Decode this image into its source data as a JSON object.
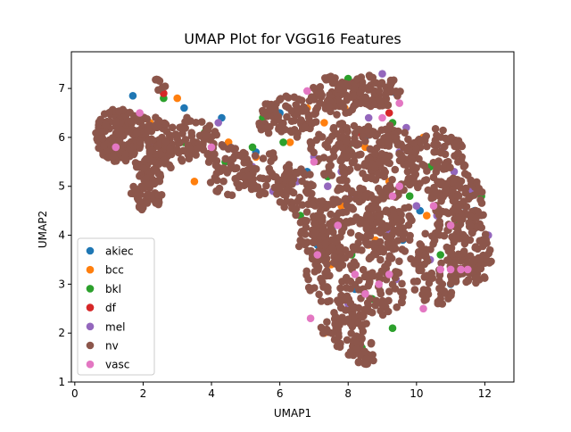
{
  "chart_data": {
    "type": "scatter",
    "title": "UMAP Plot for VGG16 Features",
    "xlabel": "UMAP1",
    "ylabel": "UMAP2",
    "xlim": [
      -0.1,
      12.85
    ],
    "ylim": [
      1.0,
      7.75
    ],
    "xticks": [
      0,
      2,
      4,
      6,
      8,
      10,
      12
    ],
    "yticks": [
      1,
      2,
      3,
      4,
      5,
      6,
      7
    ],
    "grid": false,
    "legend_position": "lower-left",
    "series": [
      {
        "name": "akiec",
        "color": "#1f77b4",
        "points": [
          [
            1.7,
            6.85
          ],
          [
            2.5,
            6.3
          ],
          [
            3.2,
            6.6
          ],
          [
            4.3,
            6.4
          ],
          [
            5.3,
            5.7
          ],
          [
            6.0,
            6.5
          ],
          [
            6.8,
            5.3
          ],
          [
            7.1,
            3.8
          ],
          [
            7.6,
            4.2
          ],
          [
            8.5,
            6.0
          ],
          [
            8.8,
            4.7
          ],
          [
            9.4,
            6.9
          ],
          [
            10.1,
            4.5
          ],
          [
            10.9,
            4.9
          ],
          [
            11.4,
            4.6
          ],
          [
            11.7,
            4.5
          ],
          [
            9.6,
            3.9
          ],
          [
            8.2,
            2.9
          ],
          [
            7.4,
            3.4
          ],
          [
            11.0,
            3.0
          ]
        ]
      },
      {
        "name": "bcc",
        "color": "#ff7f0e",
        "points": [
          [
            1.2,
            6.5
          ],
          [
            2.2,
            6.3
          ],
          [
            3.0,
            6.8
          ],
          [
            3.5,
            5.1
          ],
          [
            4.5,
            5.9
          ],
          [
            5.3,
            5.6
          ],
          [
            6.3,
            5.9
          ],
          [
            6.8,
            6.6
          ],
          [
            7.3,
            6.3
          ],
          [
            7.9,
            6.6
          ],
          [
            8.5,
            5.8
          ],
          [
            9.0,
            4.8
          ],
          [
            9.2,
            5.1
          ],
          [
            10.3,
            4.4
          ],
          [
            8.6,
            3.8
          ],
          [
            7.8,
            4.6
          ],
          [
            8.8,
            3.9
          ],
          [
            7.3,
            2.0
          ],
          [
            7.5,
            3.4
          ],
          [
            10.2,
            6.0
          ]
        ]
      },
      {
        "name": "bkl",
        "color": "#2ca02c",
        "points": [
          [
            1.0,
            6.3
          ],
          [
            2.6,
            6.8
          ],
          [
            3.2,
            5.9
          ],
          [
            3.8,
            6.1
          ],
          [
            4.4,
            5.5
          ],
          [
            5.2,
            5.8
          ],
          [
            5.5,
            6.4
          ],
          [
            6.1,
            5.9
          ],
          [
            6.6,
            4.4
          ],
          [
            7.4,
            5.2
          ],
          [
            8.0,
            5.8
          ],
          [
            8.4,
            4.9
          ],
          [
            8.9,
            4.3
          ],
          [
            9.1,
            5.6
          ],
          [
            9.8,
            4.8
          ],
          [
            10.4,
            5.4
          ],
          [
            11.2,
            4.3
          ],
          [
            11.9,
            4.8
          ],
          [
            8.1,
            3.6
          ],
          [
            8.7,
            2.7
          ],
          [
            8.4,
            1.7
          ],
          [
            9.3,
            2.1
          ],
          [
            10.7,
            3.6
          ],
          [
            7.1,
            3.3
          ],
          [
            9.3,
            6.3
          ],
          [
            8.0,
            7.2
          ]
        ]
      },
      {
        "name": "df",
        "color": "#d62728",
        "points": [
          [
            2.6,
            6.9
          ],
          [
            7.8,
            5.9
          ],
          [
            8.3,
            6.1
          ],
          [
            9.2,
            6.5
          ],
          [
            9.6,
            5.5
          ]
        ]
      },
      {
        "name": "mel",
        "color": "#9467bd",
        "points": [
          [
            1.4,
            6.4
          ],
          [
            2.2,
            5.9
          ],
          [
            3.5,
            5.8
          ],
          [
            4.2,
            6.3
          ],
          [
            4.6,
            5.4
          ],
          [
            5.2,
            5.4
          ],
          [
            5.8,
            4.9
          ],
          [
            6.5,
            5.1
          ],
          [
            7.0,
            5.6
          ],
          [
            7.4,
            5.0
          ],
          [
            7.8,
            5.3
          ],
          [
            8.1,
            4.8
          ],
          [
            8.4,
            4.3
          ],
          [
            8.9,
            5.4
          ],
          [
            9.2,
            4.1
          ],
          [
            9.5,
            5.7
          ],
          [
            10.0,
            4.6
          ],
          [
            10.6,
            4.4
          ],
          [
            11.1,
            5.3
          ],
          [
            11.6,
            4.9
          ],
          [
            12.1,
            4.0
          ],
          [
            10.8,
            5.8
          ],
          [
            9.7,
            6.2
          ],
          [
            8.6,
            6.4
          ],
          [
            9.4,
            3.1
          ],
          [
            8.0,
            2.6
          ],
          [
            9.0,
            7.3
          ],
          [
            10.4,
            3.5
          ]
        ]
      },
      {
        "name": "vasc",
        "color": "#e377c2",
        "points": [
          [
            1.9,
            6.5
          ],
          [
            1.2,
            5.8
          ],
          [
            4.0,
            5.8
          ],
          [
            6.8,
            6.95
          ],
          [
            7.0,
            5.5
          ],
          [
            6.9,
            2.3
          ],
          [
            7.7,
            4.2
          ],
          [
            8.2,
            3.2
          ],
          [
            8.9,
            3.0
          ],
          [
            9.0,
            6.4
          ],
          [
            9.5,
            5.0
          ],
          [
            9.3,
            4.8
          ],
          [
            10.5,
            4.6
          ],
          [
            11.0,
            4.2
          ],
          [
            10.7,
            3.3
          ],
          [
            11.0,
            3.3
          ],
          [
            11.3,
            3.3
          ],
          [
            11.5,
            3.3
          ],
          [
            10.2,
            2.5
          ],
          [
            8.5,
            2.8
          ],
          [
            9.2,
            3.2
          ],
          [
            9.5,
            6.7
          ],
          [
            7.1,
            3.6
          ]
        ]
      }
    ],
    "dense_series": {
      "name": "nv",
      "color": "#8c564b",
      "regions": [
        {
          "cx": 1.3,
          "cy": 6.05,
          "rx": 0.7,
          "ry": 0.55,
          "n": 160
        },
        {
          "cx": 2.3,
          "cy": 5.75,
          "rx": 0.6,
          "ry": 0.75,
          "n": 110
        },
        {
          "cx": 2.1,
          "cy": 4.85,
          "rx": 0.45,
          "ry": 0.35,
          "n": 45
        },
        {
          "cx": 3.4,
          "cy": 5.95,
          "rx": 0.8,
          "ry": 0.5,
          "n": 70
        },
        {
          "cx": 4.5,
          "cy": 5.35,
          "rx": 0.7,
          "ry": 0.55,
          "n": 55
        },
        {
          "cx": 5.6,
          "cy": 5.25,
          "rx": 0.8,
          "ry": 0.45,
          "n": 55
        },
        {
          "cx": 6.2,
          "cy": 6.4,
          "rx": 0.9,
          "ry": 0.45,
          "n": 80
        },
        {
          "cx": 7.6,
          "cy": 6.85,
          "rx": 0.8,
          "ry": 0.4,
          "n": 90
        },
        {
          "cx": 8.8,
          "cy": 6.95,
          "rx": 0.8,
          "ry": 0.35,
          "n": 80
        },
        {
          "cx": 8.0,
          "cy": 5.7,
          "rx": 1.2,
          "ry": 0.6,
          "n": 130
        },
        {
          "cx": 9.3,
          "cy": 5.5,
          "rx": 0.7,
          "ry": 0.8,
          "n": 90
        },
        {
          "cx": 10.6,
          "cy": 5.5,
          "rx": 0.9,
          "ry": 0.7,
          "n": 100
        },
        {
          "cx": 11.2,
          "cy": 4.6,
          "rx": 0.8,
          "ry": 0.7,
          "n": 100
        },
        {
          "cx": 11.6,
          "cy": 3.6,
          "rx": 0.6,
          "ry": 0.65,
          "n": 90
        },
        {
          "cx": 10.5,
          "cy": 3.3,
          "rx": 0.7,
          "ry": 0.8,
          "n": 80
        },
        {
          "cx": 8.0,
          "cy": 4.3,
          "rx": 1.1,
          "ry": 0.7,
          "n": 140
        },
        {
          "cx": 9.2,
          "cy": 4.2,
          "rx": 0.7,
          "ry": 0.7,
          "n": 80
        },
        {
          "cx": 7.5,
          "cy": 3.2,
          "rx": 0.8,
          "ry": 0.6,
          "n": 70
        },
        {
          "cx": 9.0,
          "cy": 3.0,
          "rx": 0.7,
          "ry": 0.7,
          "n": 70
        },
        {
          "cx": 7.9,
          "cy": 2.2,
          "rx": 0.7,
          "ry": 0.5,
          "n": 60
        },
        {
          "cx": 8.4,
          "cy": 1.6,
          "rx": 0.4,
          "ry": 0.3,
          "n": 35
        },
        {
          "cx": 6.5,
          "cy": 4.9,
          "rx": 0.6,
          "ry": 0.5,
          "n": 50
        },
        {
          "cx": 6.9,
          "cy": 3.9,
          "rx": 0.45,
          "ry": 0.5,
          "n": 35
        },
        {
          "cx": 2.5,
          "cy": 7.1,
          "rx": 0.2,
          "ry": 0.15,
          "n": 8
        }
      ]
    },
    "legend": [
      "akiec",
      "bcc",
      "bkl",
      "df",
      "mel",
      "nv",
      "vasc"
    ]
  }
}
